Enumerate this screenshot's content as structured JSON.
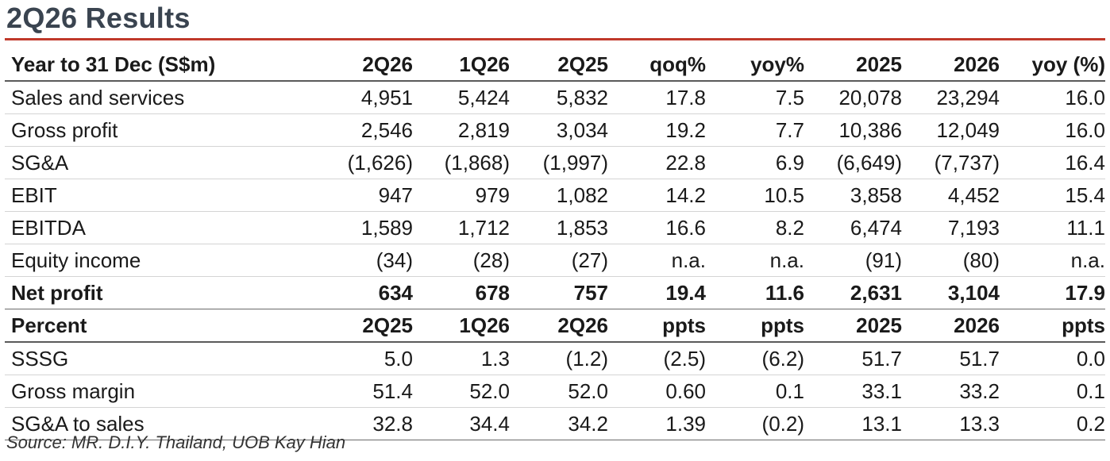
{
  "title": "2Q26 Results",
  "table1": {
    "header": [
      "Year to 31 Dec (S$m)",
      "2Q26",
      "1Q26",
      "2Q25",
      "qoq%",
      "yoy%",
      "2025",
      "2026",
      "yoy (%)"
    ],
    "rows": [
      [
        "Sales and services",
        "4,951",
        "5,424",
        "5,832",
        "17.8",
        "7.5",
        "20,078",
        "23,294",
        "16.0"
      ],
      [
        "Gross profit",
        "2,546",
        "2,819",
        "3,034",
        "19.2",
        "7.7",
        "10,386",
        "12,049",
        "16.0"
      ],
      [
        "SG&A",
        "(1,626)",
        "(1,868)",
        "(1,997)",
        "22.8",
        "6.9",
        "(6,649)",
        "(7,737)",
        "16.4"
      ],
      [
        "EBIT",
        "947",
        "979",
        "1,082",
        "14.2",
        "10.5",
        "3,858",
        "4,452",
        "15.4"
      ],
      [
        "EBITDA",
        "1,589",
        "1,712",
        "1,853",
        "16.6",
        "8.2",
        "6,474",
        "7,193",
        "11.1"
      ],
      [
        "Equity income",
        "(34)",
        "(28)",
        "(27)",
        "n.a.",
        "n.a.",
        "(91)",
        "(80)",
        "n.a."
      ],
      [
        "Net profit",
        "634",
        "678",
        "757",
        "19.4",
        "11.6",
        "2,631",
        "3,104",
        "17.9"
      ]
    ]
  },
  "table2": {
    "header": [
      "Percent",
      "2Q25",
      "1Q26",
      "2Q26",
      "ppts",
      "ppts",
      "2025",
      "2026",
      "ppts"
    ],
    "rows": [
      [
        "SSSG",
        "5.0",
        "1.3",
        "(1.2)",
        "(2.5)",
        "(6.2)",
        "51.7",
        "51.7",
        "0.0"
      ],
      [
        "Gross margin",
        "51.4",
        "52.0",
        "52.0",
        "0.60",
        "0.1",
        "33.1",
        "33.2",
        "0.1"
      ],
      [
        "SG&A to sales",
        "32.8",
        "34.4",
        "34.2",
        "1.39",
        "(0.2)",
        "13.1",
        "13.3",
        "0.2"
      ]
    ]
  },
  "source": "Source: MR. D.I.Y. Thailand, UOB Kay Hian",
  "colors": {
    "title": "#3a4450",
    "rule": "#c0392b"
  }
}
